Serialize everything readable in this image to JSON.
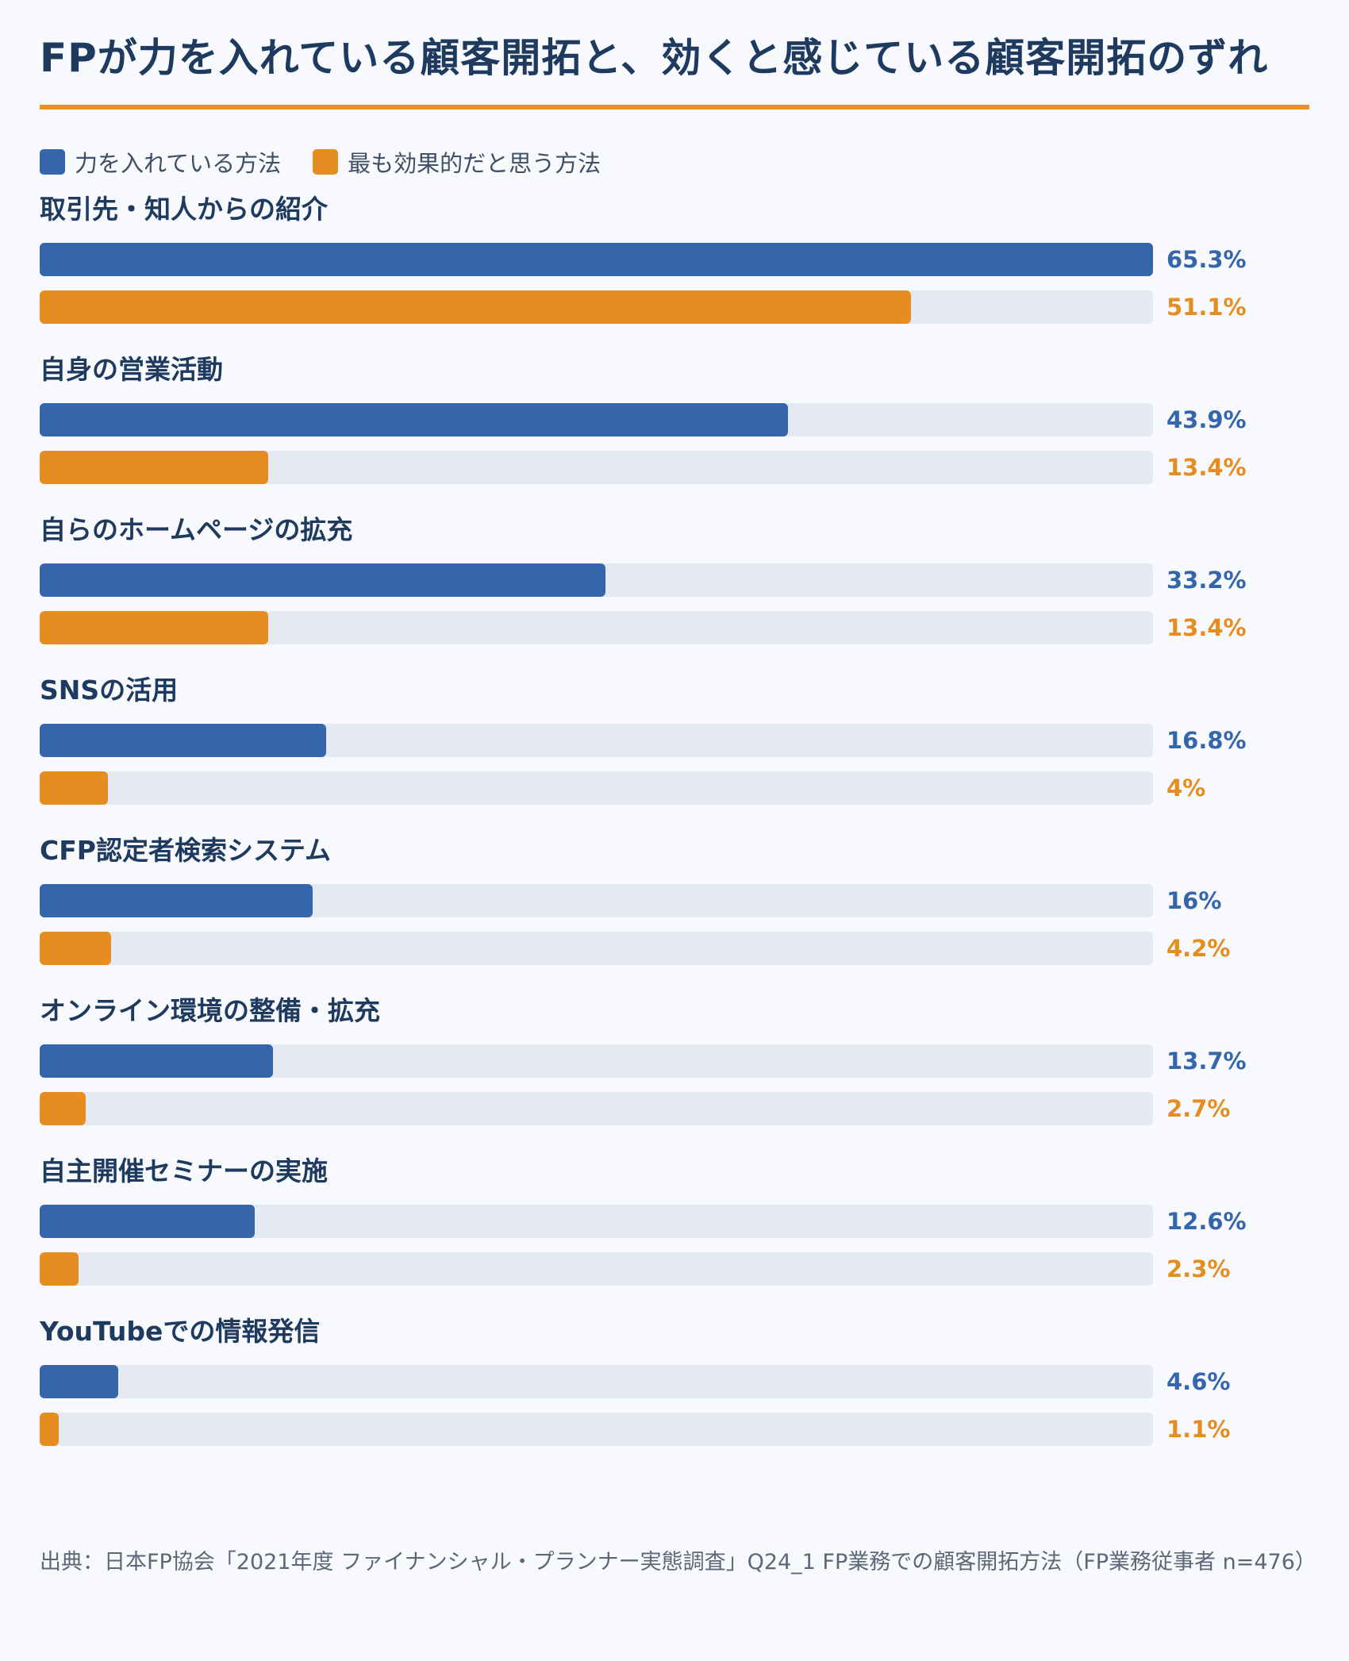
{
  "title": "FPが力を入れている顧客開拓と、効くと感じている顧客開拓のずれ",
  "colors": {
    "series1": "#3566ab",
    "series2": "#e68d22",
    "accent_rule": "#e8921f",
    "track": "#e4e9f2"
  },
  "legend": [
    {
      "label": "力を入れている方法",
      "color": "#3566ab"
    },
    {
      "label": "最も効果的だと思う方法",
      "color": "#e68d22"
    }
  ],
  "chart_data": {
    "type": "bar",
    "orientation": "horizontal",
    "title": "FPが力を入れている顧客開拓と、効くと感じている顧客開拓のずれ",
    "categories": [
      "取引先・知人からの紹介",
      "自身の営業活動",
      "自らのホームページの拡充",
      "SNSの活用",
      "CFP認定者検索システム",
      "オンライン環境の整備・拡充",
      "自主開催セミナーの実施",
      "YouTubeでの情報発信"
    ],
    "series": [
      {
        "name": "力を入れている方法",
        "values": [
          65.3,
          43.9,
          33.2,
          16.8,
          16,
          13.7,
          12.6,
          4.6
        ],
        "labels": [
          "65.3%",
          "43.9%",
          "33.2%",
          "16.8%",
          "16%",
          "13.7%",
          "12.6%",
          "4.6%"
        ]
      },
      {
        "name": "最も効果的だと思う方法",
        "values": [
          51.1,
          13.4,
          13.4,
          4,
          4.2,
          2.7,
          2.3,
          1.1
        ],
        "labels": [
          "51.1%",
          "13.4%",
          "13.4%",
          "4%",
          "4.2%",
          "2.7%",
          "2.3%",
          "1.1%"
        ]
      }
    ],
    "xlim": [
      0,
      65.3
    ],
    "legend_position": "top-left",
    "grid": false
  },
  "source": "出典：日本FP協会「2021年度 ファイナンシャル・プランナー実態調査」Q24_1 FP業務での顧客開拓方法（FP業務従事者 n=476）"
}
